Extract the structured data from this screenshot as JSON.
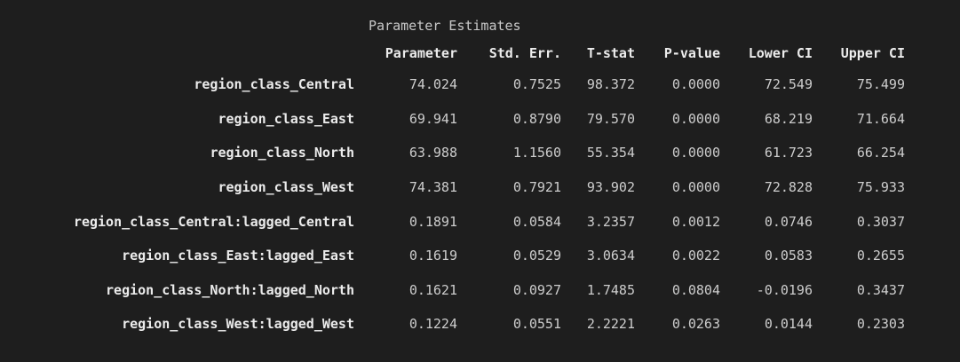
{
  "table": {
    "caption": "Parameter Estimates",
    "columns": [
      "Parameter",
      "Std. Err.",
      "T-stat",
      "P-value",
      "Lower CI",
      "Upper CI"
    ],
    "rows": [
      {
        "label": "region_class_Central",
        "values": [
          "74.024",
          "0.7525",
          "98.372",
          "0.0000",
          "72.549",
          "75.499"
        ]
      },
      {
        "label": "region_class_East",
        "values": [
          "69.941",
          "0.8790",
          "79.570",
          "0.0000",
          "68.219",
          "71.664"
        ]
      },
      {
        "label": "region_class_North",
        "values": [
          "63.988",
          "1.1560",
          "55.354",
          "0.0000",
          "61.723",
          "66.254"
        ]
      },
      {
        "label": "region_class_West",
        "values": [
          "74.381",
          "0.7921",
          "93.902",
          "0.0000",
          "72.828",
          "75.933"
        ]
      },
      {
        "label": "region_class_Central:lagged_Central",
        "values": [
          "0.1891",
          "0.0584",
          "3.2357",
          "0.0012",
          "0.0746",
          "0.3037"
        ]
      },
      {
        "label": "region_class_East:lagged_East",
        "values": [
          "0.1619",
          "0.0529",
          "3.0634",
          "0.0022",
          "0.0583",
          "0.2655"
        ]
      },
      {
        "label": "region_class_North:lagged_North",
        "values": [
          "0.1621",
          "0.0927",
          "1.7485",
          "0.0804",
          "-0.0196",
          "0.3437"
        ]
      },
      {
        "label": "region_class_West:lagged_West",
        "values": [
          "0.1224",
          "0.0551",
          "2.2221",
          "0.0263",
          "0.0144",
          "0.2303"
        ]
      }
    ]
  }
}
